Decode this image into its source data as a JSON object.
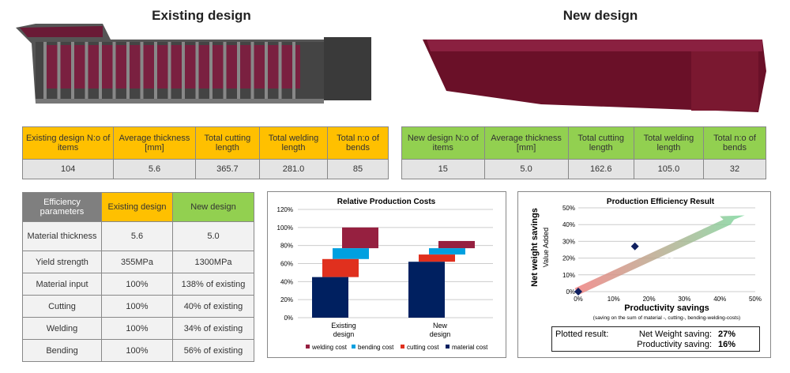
{
  "titles": {
    "existing": "Existing design",
    "new": "New design"
  },
  "existing_table": {
    "headers": [
      "Existing design N:o of items",
      "Average thickness [mm]",
      "Total cutting length",
      "Total welding length",
      "Total n:o of bends"
    ],
    "values": [
      "104",
      "5.6",
      "365.7",
      "281.0",
      "85"
    ]
  },
  "new_table": {
    "headers": [
      "New design N:o of items",
      "Average thickness [mm]",
      "Total cutting length",
      "Total welding length",
      "Total n:o of bends"
    ],
    "values": [
      "15",
      "5.0",
      "162.6",
      "105.0",
      "32"
    ]
  },
  "efficiency_table": {
    "headers": [
      "Efficiency parameters",
      "Existing design",
      "New design"
    ],
    "rows": [
      [
        "Material thickness",
        "5.6",
        "5.0"
      ],
      [
        "Yield strength",
        "355MPa",
        "1300MPa"
      ],
      [
        "Material input",
        "100%",
        "138% of existing"
      ],
      [
        "Cutting",
        "100%",
        "40% of existing"
      ],
      [
        "Welding",
        "100%",
        "34% of existing"
      ],
      [
        "Bending",
        "100%",
        "56% of existing"
      ]
    ]
  },
  "colors": {
    "orange": "#ffc000",
    "green": "#92d050",
    "material": "#002060",
    "cutting": "#e0301e",
    "bending": "#00a0e0",
    "welding": "#962040",
    "body": "#7a1a36"
  },
  "chart_data": [
    {
      "type": "bar",
      "subtype": "waterfall",
      "title": "Relative Production Costs",
      "categories": [
        "Existing design",
        "New design"
      ],
      "ylim": [
        0,
        120
      ],
      "yticks": [
        "0%",
        "20%",
        "40%",
        "60%",
        "80%",
        "100%",
        "120%"
      ],
      "grid": true,
      "legend_placement": "bottom",
      "series": [
        {
          "name": "welding cost",
          "ranges": [
            [
              77,
              100
            ],
            [
              77,
              85
            ]
          ]
        },
        {
          "name": "bending cost",
          "ranges": [
            [
              65,
              77
            ],
            [
              70,
              77
            ]
          ]
        },
        {
          "name": "cutting cost",
          "ranges": [
            [
              45,
              65
            ],
            [
              62,
              70
            ]
          ]
        },
        {
          "name": "material cost",
          "ranges": [
            [
              0,
              45
            ],
            [
              0,
              62
            ]
          ]
        }
      ]
    },
    {
      "type": "scatter",
      "title": "Production Efficiency Result",
      "xlabel": "Productivity savings",
      "xsublabel": "(saving on the sum of material -, cutting-, bending-welding-costs)",
      "ylabel": "Net weight savings",
      "ysublabel": "Value Added",
      "xlim": [
        0,
        50
      ],
      "ylim": [
        0,
        50
      ],
      "xticks": [
        "0%",
        "10%",
        "20%",
        "30%",
        "40%",
        "50%"
      ],
      "yticks": [
        "0%",
        "10%",
        "20%",
        "30%",
        "40%",
        "50%"
      ],
      "grid": true,
      "points": [
        {
          "x": 0,
          "y": 0
        },
        {
          "x": 16,
          "y": 27
        }
      ],
      "arrow_label": "Production Efficiency",
      "result": {
        "label": "Plotted result:",
        "net_label": "Net Weight saving:",
        "net_value": "27%",
        "prod_label": "Productivity saving:",
        "prod_value": "16%"
      }
    }
  ]
}
